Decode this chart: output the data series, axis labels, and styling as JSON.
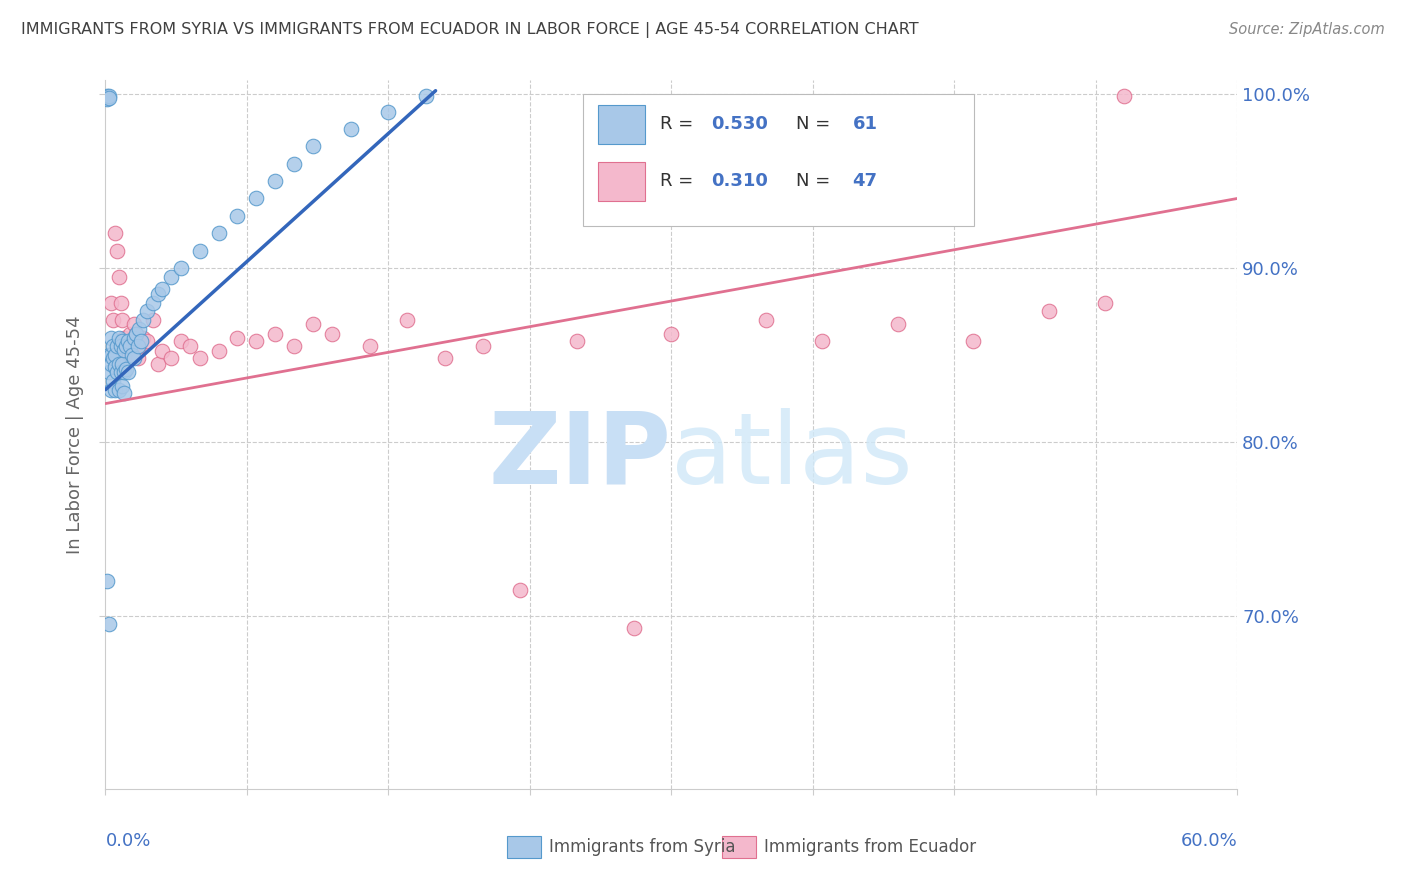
{
  "title": "IMMIGRANTS FROM SYRIA VS IMMIGRANTS FROM ECUADOR IN LABOR FORCE | AGE 45-54 CORRELATION CHART",
  "source": "Source: ZipAtlas.com",
  "ylabel_label": "In Labor Force | Age 45-54",
  "syria_R": 0.53,
  "syria_N": 61,
  "ecuador_R": 0.31,
  "ecuador_N": 47,
  "color_syria_fill": "#a8c8e8",
  "color_syria_edge": "#5599cc",
  "color_syria_line": "#3366bb",
  "color_ecuador_fill": "#f4b8cc",
  "color_ecuador_edge": "#e07090",
  "color_ecuador_line": "#e07090",
  "color_axis_labels": "#4472C4",
  "color_title": "#404040",
  "color_grid": "#cccccc",
  "xmin": 0.0,
  "xmax": 0.6,
  "ymin": 0.6,
  "ymax": 1.008,
  "yticks": [
    0.7,
    0.8,
    0.9,
    1.0
  ],
  "ytick_labels": [
    "70.0%",
    "80.0%",
    "90.0%",
    "100.0%"
  ],
  "syria_x": [
    0.001,
    0.001,
    0.001,
    0.002,
    0.002,
    0.002,
    0.002,
    0.003,
    0.003,
    0.003,
    0.003,
    0.004,
    0.004,
    0.004,
    0.005,
    0.005,
    0.005,
    0.006,
    0.006,
    0.007,
    0.007,
    0.007,
    0.008,
    0.008,
    0.009,
    0.009,
    0.009,
    0.01,
    0.01,
    0.01,
    0.011,
    0.011,
    0.012,
    0.012,
    0.013,
    0.014,
    0.015,
    0.015,
    0.016,
    0.017,
    0.018,
    0.019,
    0.02,
    0.022,
    0.025,
    0.028,
    0.03,
    0.035,
    0.04,
    0.05,
    0.06,
    0.07,
    0.08,
    0.09,
    0.1,
    0.11,
    0.13,
    0.15,
    0.17,
    0.002,
    0.001
  ],
  "syria_y": [
    0.999,
    0.998,
    0.997,
    0.999,
    0.998,
    0.85,
    0.84,
    0.86,
    0.85,
    0.845,
    0.83,
    0.855,
    0.848,
    0.835,
    0.85,
    0.843,
    0.83,
    0.855,
    0.84,
    0.86,
    0.845,
    0.83,
    0.855,
    0.84,
    0.858,
    0.845,
    0.832,
    0.853,
    0.84,
    0.828,
    0.855,
    0.842,
    0.858,
    0.84,
    0.855,
    0.85,
    0.86,
    0.848,
    0.862,
    0.855,
    0.865,
    0.858,
    0.87,
    0.875,
    0.88,
    0.885,
    0.888,
    0.895,
    0.9,
    0.91,
    0.92,
    0.93,
    0.94,
    0.95,
    0.96,
    0.97,
    0.98,
    0.99,
    0.999,
    0.695,
    0.72
  ],
  "ecuador_x": [
    0.003,
    0.004,
    0.005,
    0.006,
    0.007,
    0.008,
    0.009,
    0.01,
    0.011,
    0.012,
    0.013,
    0.014,
    0.015,
    0.016,
    0.017,
    0.018,
    0.02,
    0.022,
    0.025,
    0.028,
    0.03,
    0.035,
    0.04,
    0.045,
    0.05,
    0.06,
    0.07,
    0.08,
    0.09,
    0.1,
    0.11,
    0.12,
    0.14,
    0.16,
    0.18,
    0.2,
    0.22,
    0.25,
    0.28,
    0.3,
    0.35,
    0.38,
    0.42,
    0.46,
    0.5,
    0.53,
    0.54
  ],
  "ecuador_y": [
    0.88,
    0.87,
    0.92,
    0.91,
    0.895,
    0.88,
    0.87,
    0.86,
    0.855,
    0.85,
    0.862,
    0.855,
    0.868,
    0.862,
    0.848,
    0.855,
    0.86,
    0.858,
    0.87,
    0.845,
    0.852,
    0.848,
    0.858,
    0.855,
    0.848,
    0.852,
    0.86,
    0.858,
    0.862,
    0.855,
    0.868,
    0.862,
    0.855,
    0.87,
    0.848,
    0.855,
    0.715,
    0.858,
    0.693,
    0.862,
    0.87,
    0.858,
    0.868,
    0.858,
    0.875,
    0.88,
    0.999
  ],
  "syria_line_x0": 0.0,
  "syria_line_x1": 0.175,
  "syria_line_y0": 0.83,
  "syria_line_y1": 1.002,
  "ecuador_line_x0": 0.0,
  "ecuador_line_x1": 0.6,
  "ecuador_line_y0": 0.822,
  "ecuador_line_y1": 0.94
}
